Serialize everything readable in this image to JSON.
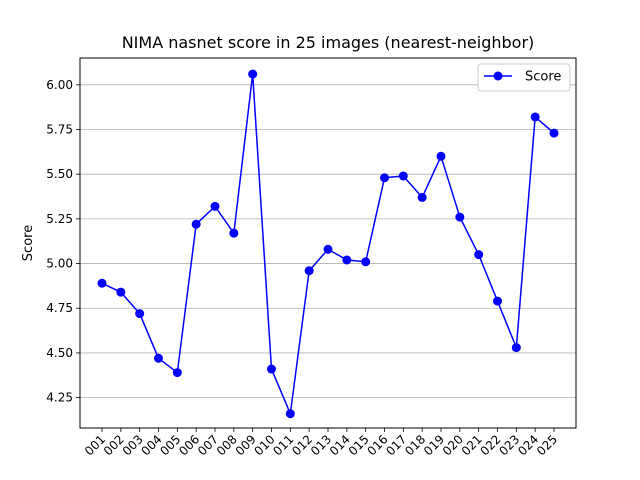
{
  "chart_data": {
    "type": "line",
    "title": "NIMA nasnet score in 25 images (nearest-neighbor)",
    "xlabel": "",
    "ylabel": "Score",
    "categories": [
      "001",
      "002",
      "003",
      "004",
      "005",
      "006",
      "007",
      "008",
      "009",
      "010",
      "011",
      "012",
      "013",
      "014",
      "015",
      "016",
      "017",
      "018",
      "019",
      "020",
      "021",
      "022",
      "023",
      "024",
      "025"
    ],
    "series": [
      {
        "name": "Score",
        "color": "#0000ff",
        "marker": "circle",
        "values": [
          4.89,
          4.84,
          4.72,
          4.47,
          4.39,
          5.22,
          5.32,
          5.17,
          6.06,
          4.41,
          4.16,
          4.96,
          5.08,
          5.02,
          5.01,
          5.48,
          5.49,
          5.37,
          5.6,
          5.26,
          5.05,
          4.79,
          4.53,
          5.82,
          5.73
        ]
      }
    ],
    "ylim": [
      4.08,
      6.15
    ],
    "yticks": [
      4.25,
      4.5,
      4.75,
      5.0,
      5.25,
      5.5,
      5.75,
      6.0
    ],
    "ytick_labels": [
      "4.25",
      "4.50",
      "4.75",
      "5.00",
      "5.25",
      "5.50",
      "5.75",
      "6.00"
    ],
    "grid": "y-major",
    "legend_position": "top-right"
  }
}
